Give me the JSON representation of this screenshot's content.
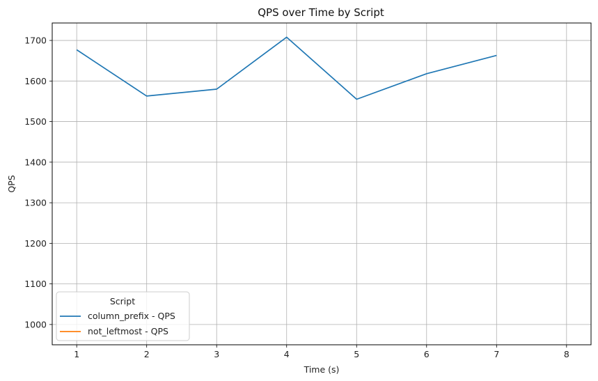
{
  "chart_data": {
    "type": "line",
    "title": "QPS over Time by Script",
    "xlabel": "Time (s)",
    "ylabel": "QPS",
    "xlim": [
      0.65,
      8.35
    ],
    "ylim": [
      950,
      1743
    ],
    "xticks": [
      1,
      2,
      3,
      4,
      5,
      6,
      7,
      8
    ],
    "yticks": [
      1000,
      1100,
      1200,
      1300,
      1400,
      1500,
      1600,
      1700
    ],
    "grid": true,
    "legend": {
      "title": "Script",
      "placement": "lower-left"
    },
    "series": [
      {
        "name": "column_prefix - QPS",
        "color": "#1f77b4",
        "x": [
          1,
          2,
          3,
          4,
          5,
          6,
          7
        ],
        "y": [
          1677,
          1563,
          1580,
          1708,
          1555,
          1618,
          1663
        ]
      },
      {
        "name": "not_leftmost - QPS",
        "color": "#ff7f0e",
        "x": [],
        "y": []
      }
    ]
  }
}
